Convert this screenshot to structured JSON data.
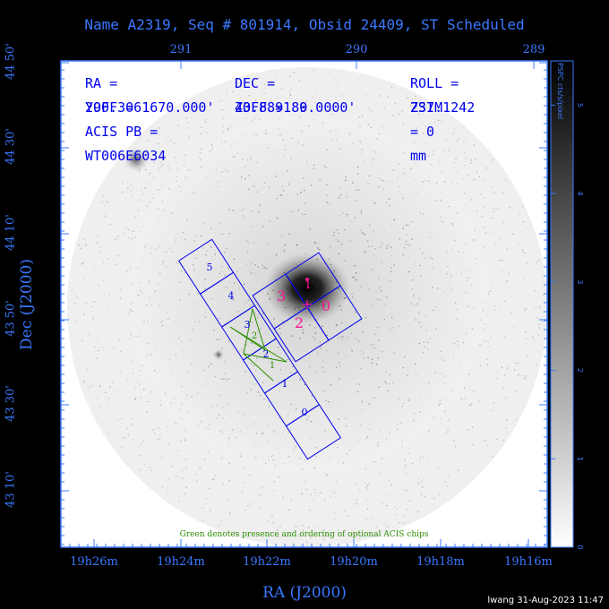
{
  "title": "Name A2319, Seq # 801914, Obsid 24409, ST Scheduled",
  "xlabel": "RA (J2000)",
  "ylabel": "Dec (J2000)",
  "colorbar_label": "PSPC cts/s/pixel",
  "colorbar_ticks": [
    "0",
    "1",
    "2",
    "3",
    "4",
    "5"
  ],
  "ra_ticks_bottom": [
    "19h26m",
    "19h24m",
    "19h22m",
    "19h20m",
    "19h18m",
    "19h16m"
  ],
  "ra_ticks_top": [
    "291",
    "290",
    "289"
  ],
  "dec_ticks": [
    "43 10'",
    "43 30'",
    "43 50'",
    "44 10'",
    "44 30'",
    "44 50'"
  ],
  "info": {
    "line1": [
      "RA = 290.306167",
      "DEC = 43.889189",
      "ROLL = 237.1242"
    ],
    "line2": [
      "YOFF =    0.000'",
      "ZOFF =  0.0000'",
      "ZSIM = 0 mm"
    ],
    "line3": "ACIS PB = WT006E6034"
  },
  "acis_s_labels": [
    "5",
    "4",
    "3",
    "2",
    "1",
    "0"
  ],
  "acis_i_labels": [
    "3",
    "2",
    "1",
    "0"
  ],
  "optional_labels": [
    "3",
    "2",
    "3",
    "1"
  ],
  "green_note": "Green denotes presence and ordering of optional ACIS chips",
  "footer": "lwang 31-Aug-2023 11:47",
  "colors": {
    "blue": "#3a78ff",
    "chip": "#0000ee",
    "magenta": "#ff1493",
    "green": "#2a8f00"
  }
}
